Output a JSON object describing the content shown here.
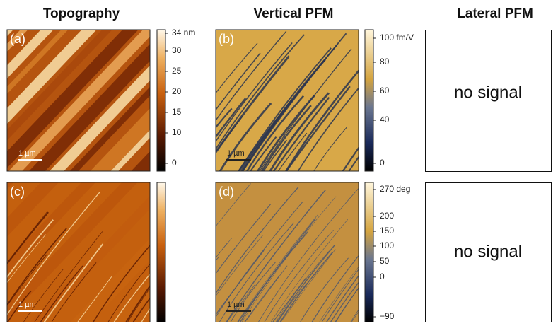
{
  "columns": [
    "Topography",
    "Vertical PFM",
    "Lateral PFM"
  ],
  "panels": [
    {
      "label": "(a)",
      "scale_bar": "1 µm"
    },
    {
      "label": "(b)",
      "scale_bar": "1 µm"
    },
    {
      "label": "(c)",
      "scale_bar": "1 µm"
    },
    {
      "label": "(d)",
      "scale_bar": "1 µm"
    }
  ],
  "colorbars": [
    {
      "ticks": [
        "34 nm",
        "30",
        "25",
        "20",
        "15",
        "10",
        "0"
      ]
    },
    {
      "ticks": [
        "100 fm/V",
        "80",
        "60",
        "40",
        "0"
      ]
    },
    {
      "ticks": [
        "270 deg",
        "200",
        "150",
        "100",
        "50",
        "0",
        "−90"
      ]
    }
  ],
  "no_signal": [
    "no signal",
    "no signal"
  ]
}
